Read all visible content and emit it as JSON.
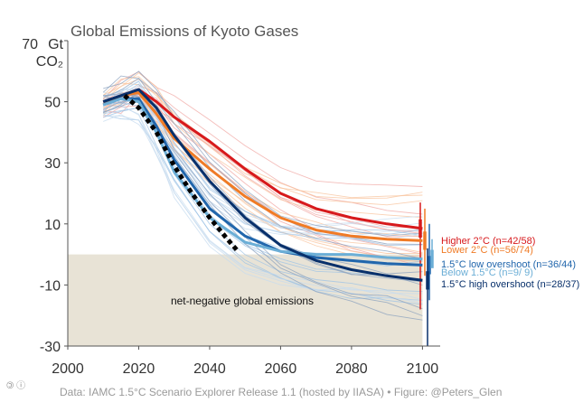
{
  "chart_data": {
    "type": "line",
    "title": "Global Emissions of Kyoto Gases",
    "y_unit_line1": "Gt",
    "y_unit_line2": "CO₂",
    "xlim": [
      2000,
      2105
    ],
    "ylim": [
      -30,
      70
    ],
    "x_ticks": [
      2000,
      2020,
      2040,
      2060,
      2080,
      2100
    ],
    "y_ticks": [
      -30,
      -10,
      10,
      30,
      50,
      70
    ],
    "grid": false,
    "legend_position": "right",
    "negative_region": {
      "from": 0,
      "to": -30,
      "color": "#e8e3d6",
      "label": "net-negative global emissions"
    },
    "historical": {
      "style": "dotted",
      "color": "#000000",
      "x": [
        2016,
        2020,
        2025,
        2030,
        2035,
        2040,
        2045,
        2048
      ],
      "y": [
        52,
        48,
        40,
        29,
        20,
        12,
        5,
        1
      ]
    },
    "series": [
      {
        "name": "Higher 2°C",
        "n_label": "(n=42/58)",
        "color": "#d7191c",
        "thin_color": "#f0a7a3",
        "x": [
          2010,
          2015,
          2020,
          2025,
          2030,
          2040,
          2050,
          2060,
          2070,
          2080,
          2090,
          2100
        ],
        "y": [
          50,
          52,
          54,
          50,
          45,
          37,
          28,
          20,
          15,
          12,
          10,
          8.5
        ],
        "range": [
          -18,
          17
        ]
      },
      {
        "name": "Lower 2°C",
        "n_label": "(n=56/74)",
        "color": "#f07b26",
        "thin_color": "#f8c19a",
        "x": [
          2010,
          2015,
          2020,
          2025,
          2030,
          2040,
          2050,
          2060,
          2070,
          2080,
          2090,
          2100
        ],
        "y": [
          49,
          52,
          53,
          46,
          38,
          28,
          19,
          12,
          8,
          6,
          5,
          4.5
        ],
        "range": [
          -7,
          15
        ]
      },
      {
        "name": "1.5°C low overshoot",
        "n_label": "(n=36/44)",
        "color": "#2166ac",
        "thin_color": "#9ec3e6",
        "x": [
          2010,
          2015,
          2020,
          2025,
          2030,
          2040,
          2050,
          2060,
          2070,
          2080,
          2090,
          2100
        ],
        "y": [
          49,
          51,
          51,
          42,
          31,
          15,
          6,
          1,
          -1,
          -2,
          -3,
          -3.5
        ],
        "range": [
          -15,
          10
        ]
      },
      {
        "name": "Below 1.5°C",
        "n_label": "(n=9/ 9)",
        "color": "#6baed6",
        "thin_color": "#c6dbef",
        "x": [
          2010,
          2015,
          2020,
          2025,
          2030,
          2040,
          2050,
          2060,
          2070,
          2080,
          2090,
          2100
        ],
        "y": [
          49,
          51,
          50,
          40,
          27,
          12,
          4,
          1,
          0,
          0,
          -1,
          -1.5
        ],
        "range": [
          -4,
          5
        ]
      },
      {
        "name": "1.5°C high overshoot",
        "n_label": "(n=28/37)",
        "color": "#08306b",
        "thin_color": "#8aa0bd",
        "x": [
          2010,
          2015,
          2020,
          2025,
          2030,
          2040,
          2050,
          2060,
          2070,
          2080,
          2090,
          2100
        ],
        "y": [
          50,
          52,
          54,
          48,
          39,
          24,
          12,
          3,
          -2,
          -5,
          -7,
          -8.5
        ],
        "range": [
          -30,
          2
        ]
      }
    ]
  },
  "footer": {
    "source": "Data: IAMC 1.5°C Scenario Explorer Release 1.1 (hosted by IIASA) • Figure: @Peters_Glen",
    "license_icons": "🄯 ⓘ"
  }
}
